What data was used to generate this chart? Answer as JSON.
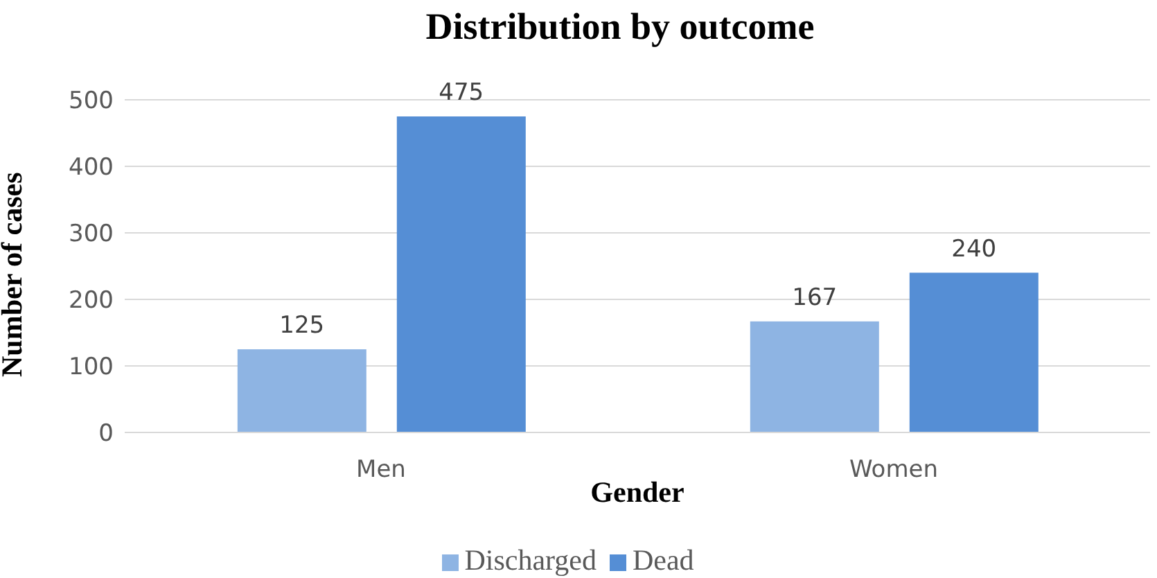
{
  "chart_data": {
    "type": "bar",
    "title": "Distribution by outcome",
    "xlabel": "Gender",
    "ylabel": "Number of cases",
    "categories": [
      "Men",
      "Women"
    ],
    "series": [
      {
        "name": "Discharged",
        "color": "#8eb4e3",
        "values": [
          125,
          167
        ]
      },
      {
        "name": "Dead",
        "color": "#558ed5",
        "values": [
          475,
          240
        ]
      }
    ],
    "ylim": [
      0,
      500
    ],
    "yticks": [
      0,
      100,
      200,
      300,
      400,
      500
    ],
    "grid": "y",
    "legend": "bottom",
    "data_labels": true
  }
}
